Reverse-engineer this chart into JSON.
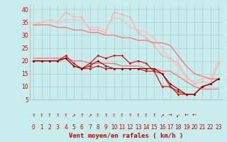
{
  "background_color": "#c8ecec",
  "grid_color": "#a8d8d8",
  "xlabel": "Vent moyen/en rafales ( km/h )",
  "x_ticks": [
    0,
    1,
    2,
    3,
    4,
    5,
    6,
    7,
    8,
    9,
    10,
    11,
    12,
    13,
    14,
    15,
    16,
    17,
    18,
    19,
    20,
    21,
    22,
    23
  ],
  "ylim": [
    5,
    42
  ],
  "yticks": [
    5,
    10,
    15,
    20,
    25,
    30,
    35,
    40
  ],
  "lines": [
    {
      "color": "#ffaaaa",
      "lw": 0.8,
      "marker": "D",
      "markersize": 1.5,
      "x": [
        0,
        1,
        2,
        3,
        4,
        5,
        6,
        7,
        8,
        9,
        10,
        11,
        12,
        13,
        14,
        15,
        16,
        17,
        18,
        19,
        20,
        21,
        22,
        23
      ],
      "y": [
        34,
        35,
        36,
        35,
        39,
        37,
        37,
        32,
        32,
        31,
        39,
        38,
        37,
        31,
        29,
        26,
        22,
        21,
        19,
        14,
        11,
        12,
        11,
        19
      ]
    },
    {
      "color": "#ffbbbb",
      "lw": 0.8,
      "marker": "D",
      "markersize": 1.5,
      "x": [
        0,
        1,
        2,
        3,
        4,
        5,
        6,
        7,
        8,
        9,
        10,
        11,
        12,
        13,
        14,
        15,
        16,
        17,
        18,
        19,
        20,
        21,
        22,
        23
      ],
      "y": [
        34,
        35,
        36,
        35,
        36,
        36,
        36,
        33,
        33,
        32,
        37,
        36,
        33,
        32,
        31,
        29,
        25,
        20,
        18,
        13,
        12,
        13,
        13,
        20
      ]
    },
    {
      "color": "#ff7777",
      "lw": 1.0,
      "marker": null,
      "markersize": 0,
      "x": [
        0,
        1,
        2,
        3,
        4,
        5,
        6,
        7,
        8,
        9,
        10,
        11,
        12,
        13,
        14,
        15,
        16,
        17,
        18,
        19,
        20,
        21,
        22,
        23
      ],
      "y": [
        34,
        34,
        34,
        33,
        33,
        32,
        32,
        31,
        31,
        30,
        30,
        29,
        29,
        28,
        28,
        27,
        27,
        26,
        22,
        18,
        15,
        14,
        13,
        13
      ]
    },
    {
      "color": "#ff7777",
      "lw": 1.0,
      "marker": null,
      "markersize": 0,
      "x": [
        0,
        1,
        2,
        3,
        4,
        5,
        6,
        7,
        8,
        9,
        10,
        11,
        12,
        13,
        14,
        15,
        16,
        17,
        18,
        19,
        20,
        21,
        22,
        23
      ],
      "y": [
        21,
        21,
        21,
        21,
        21,
        20,
        20,
        19,
        19,
        19,
        19,
        18,
        18,
        18,
        17,
        17,
        16,
        16,
        14,
        12,
        10,
        9,
        9,
        9
      ]
    },
    {
      "color": "#dd0000",
      "lw": 0.8,
      "marker": "D",
      "markersize": 1.5,
      "x": [
        0,
        1,
        2,
        3,
        4,
        5,
        6,
        7,
        8,
        9,
        10,
        11,
        12,
        13,
        14,
        15,
        16,
        17,
        18,
        19,
        20,
        21,
        22,
        23
      ],
      "y": [
        20,
        20,
        20,
        20,
        22,
        19,
        17,
        19,
        22,
        21,
        22,
        22,
        19,
        20,
        19,
        16,
        10,
        10,
        7,
        7,
        7,
        10,
        11,
        13
      ]
    },
    {
      "color": "#dd0000",
      "lw": 0.8,
      "marker": "D",
      "markersize": 1.5,
      "x": [
        0,
        1,
        2,
        3,
        4,
        5,
        6,
        7,
        8,
        9,
        10,
        11,
        12,
        13,
        14,
        15,
        16,
        17,
        18,
        19,
        20,
        21,
        22,
        23
      ],
      "y": [
        20,
        20,
        20,
        20,
        21,
        18,
        17,
        17,
        18,
        17,
        17,
        17,
        17,
        17,
        16,
        16,
        15,
        10,
        8,
        7,
        7,
        10,
        11,
        13
      ]
    },
    {
      "color": "#990000",
      "lw": 0.8,
      "marker": "D",
      "markersize": 1.5,
      "x": [
        0,
        1,
        2,
        3,
        4,
        5,
        6,
        7,
        8,
        9,
        10,
        11,
        12,
        13,
        14,
        15,
        16,
        17,
        18,
        19,
        20,
        21,
        22,
        23
      ],
      "y": [
        20,
        20,
        20,
        20,
        21,
        18,
        17,
        18,
        20,
        18,
        17,
        17,
        17,
        17,
        17,
        17,
        15,
        11,
        9,
        7,
        7,
        10,
        11,
        13
      ]
    }
  ],
  "arrow_row": [
    "↑",
    "↑",
    "↑",
    "↑",
    "↑",
    "↗",
    "↑",
    "↗",
    "↑",
    "↑",
    "↑",
    "↑",
    "↑",
    "↑",
    "↑",
    "↑",
    "↗",
    "→",
    "↙",
    "←",
    "←",
    "",
    "",
    ""
  ],
  "xlabel_bold": true,
  "label_color": "#cc0000",
  "tick_color": "#cc0000",
  "label_fontsize": 6.5,
  "tick_fontsize": 5.5,
  "arrow_fontsize": 5.0
}
